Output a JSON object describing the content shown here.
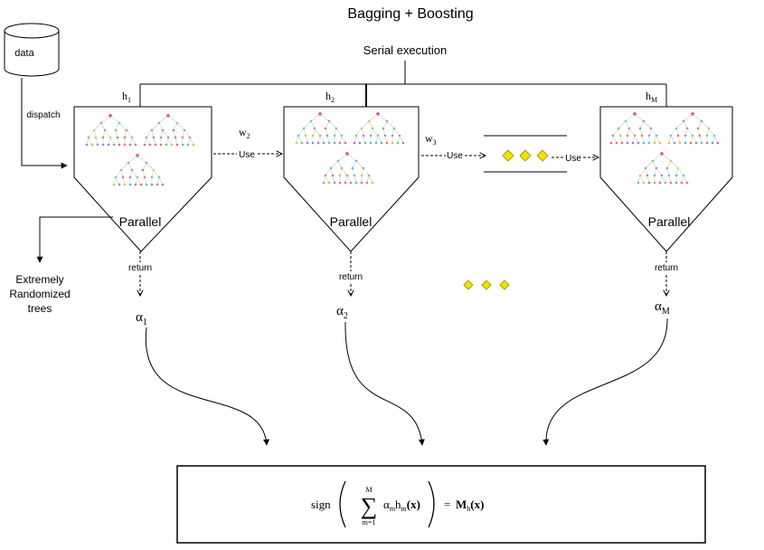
{
  "title": "Bagging + Boosting",
  "serial_label": "Serial execution",
  "data_label": "data",
  "dispatch_label": "dispatch",
  "learners": [
    {
      "h_main": "h",
      "h_sub": "1",
      "parallel": "Parallel",
      "return": "return",
      "alpha_main": "α",
      "alpha_sub": "1"
    },
    {
      "h_main": "h",
      "h_sub": "2",
      "parallel": "Parallel",
      "return": "return",
      "alpha_main": "α",
      "alpha_sub": "2"
    },
    {
      "h_main": "h",
      "h_sub": "M",
      "parallel": "Parallel",
      "return": "return",
      "alpha_main": "α",
      "alpha_sub": "M"
    }
  ],
  "weights": [
    {
      "main": "w",
      "sub": "2"
    },
    {
      "main": "w",
      "sub": "3"
    }
  ],
  "use_label": "Use",
  "ert_lines": [
    "Extremely",
    "Randomized",
    "trees"
  ],
  "formula": {
    "sign": "sign",
    "sum_upper": "M",
    "sum_lower": "m=1",
    "sigma": "∑",
    "term_alpha": "α",
    "term_alpha_sub": "m",
    "term_h": "h",
    "term_h_sub": "m",
    "term_x": "(x)",
    "equals": "=",
    "result_main": "M",
    "result_sub": "h",
    "result_x": "(x)"
  },
  "colors": {
    "diamond_fill": "#f5e000",
    "diamond_stroke": "#9a8a00",
    "tree_root": "#d0308a",
    "tree_edge": "#b8d8b8",
    "tree_node_palette": [
      "#e86aa8",
      "#7ac07a",
      "#f0b840",
      "#6aa0e0",
      "#b070d0",
      "#e07060",
      "#60c0c0"
    ]
  }
}
